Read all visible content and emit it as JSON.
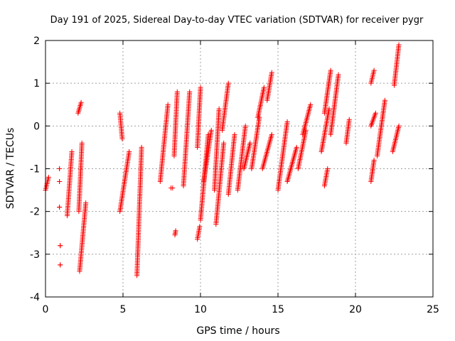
{
  "colors": {
    "marker": "#ff0000",
    "grid": "#a0a0a0",
    "axis": "#000000"
  },
  "chart_data": {
    "type": "scatter",
    "title": "Day 191 of 2025, Sidereal Day-to-day VTEC variation (SDTVAR) for receiver pygr",
    "xlabel": "GPS time / hours",
    "ylabel": "SDTVAR / TECUs",
    "xlim": [
      0,
      25
    ],
    "ylim": [
      -4,
      2
    ],
    "xticks": [
      0,
      5,
      10,
      15,
      20,
      25
    ],
    "yticks": [
      -4,
      -3,
      -2,
      -1,
      0,
      1,
      2
    ],
    "grid": true,
    "marker": "+",
    "series": [
      {
        "name": "SDTVAR",
        "segments": [
          {
            "x": [
              0.0,
              0.2
            ],
            "y": [
              -1.5,
              -1.2
            ]
          },
          {
            "x": [
              0.9,
              0.9
            ],
            "y": [
              -1.0,
              -1.0
            ]
          },
          {
            "x": [
              0.9,
              0.9
            ],
            "y": [
              -1.3,
              -1.3
            ]
          },
          {
            "x": [
              0.9,
              0.9
            ],
            "y": [
              -1.9,
              -1.9
            ]
          },
          {
            "x": [
              0.95,
              0.95
            ],
            "y": [
              -2.8,
              -2.8
            ]
          },
          {
            "x": [
              0.95,
              0.95
            ],
            "y": [
              -3.25,
              -3.25
            ]
          },
          {
            "x": [
              1.4,
              1.7
            ],
            "y": [
              -2.1,
              -0.6
            ]
          },
          {
            "x": [
              2.1,
              2.3
            ],
            "y": [
              0.3,
              0.55
            ]
          },
          {
            "x": [
              2.15,
              2.35
            ],
            "y": [
              -2.0,
              -0.4
            ]
          },
          {
            "x": [
              2.2,
              2.6
            ],
            "y": [
              -3.4,
              -1.8
            ]
          },
          {
            "x": [
              4.8,
              4.95
            ],
            "y": [
              0.3,
              -0.3
            ]
          },
          {
            "x": [
              4.8,
              5.4
            ],
            "y": [
              -2.0,
              -0.6
            ]
          },
          {
            "x": [
              5.9,
              6.2
            ],
            "y": [
              -3.5,
              -0.5
            ]
          },
          {
            "x": [
              7.4,
              7.9
            ],
            "y": [
              -1.3,
              0.5
            ]
          },
          {
            "x": [
              8.1,
              8.2
            ],
            "y": [
              -1.45,
              -1.45
            ]
          },
          {
            "x": [
              8.3,
              8.5
            ],
            "y": [
              -0.7,
              0.8
            ]
          },
          {
            "x": [
              8.35,
              8.4
            ],
            "y": [
              -2.55,
              -2.45
            ]
          },
          {
            "x": [
              8.9,
              9.3
            ],
            "y": [
              -1.4,
              0.8
            ]
          },
          {
            "x": [
              9.8,
              10.0
            ],
            "y": [
              -0.5,
              0.9
            ]
          },
          {
            "x": [
              9.8,
              9.95
            ],
            "y": [
              -2.65,
              -2.35
            ]
          },
          {
            "x": [
              10.0,
              10.5
            ],
            "y": [
              -2.2,
              -0.2
            ]
          },
          {
            "x": [
              10.2,
              10.7
            ],
            "y": [
              -1.3,
              -0.1
            ]
          },
          {
            "x": [
              10.9,
              11.2
            ],
            "y": [
              -1.5,
              0.4
            ]
          },
          {
            "x": [
              11.0,
              11.5
            ],
            "y": [
              -2.3,
              -0.4
            ]
          },
          {
            "x": [
              11.4,
              11.8
            ],
            "y": [
              -0.1,
              1.0
            ]
          },
          {
            "x": [
              11.8,
              12.2
            ],
            "y": [
              -1.6,
              -0.2
            ]
          },
          {
            "x": [
              12.4,
              12.9
            ],
            "y": [
              -1.5,
              0.0
            ]
          },
          {
            "x": [
              12.8,
              13.2
            ],
            "y": [
              -1.0,
              -0.4
            ]
          },
          {
            "x": [
              13.3,
              13.8
            ],
            "y": [
              -1.0,
              0.2
            ]
          },
          {
            "x": [
              13.7,
              14.1
            ],
            "y": [
              0.2,
              0.9
            ]
          },
          {
            "x": [
              14.0,
              14.6
            ],
            "y": [
              -1.0,
              -0.2
            ]
          },
          {
            "x": [
              14.3,
              14.6
            ],
            "y": [
              0.6,
              1.25
            ]
          },
          {
            "x": [
              15.0,
              15.6
            ],
            "y": [
              -1.5,
              0.1
            ]
          },
          {
            "x": [
              15.6,
              16.2
            ],
            "y": [
              -1.3,
              -0.5
            ]
          },
          {
            "x": [
              16.3,
              16.8
            ],
            "y": [
              -1.0,
              -0.1
            ]
          },
          {
            "x": [
              16.6,
              17.1
            ],
            "y": [
              -0.2,
              0.5
            ]
          },
          {
            "x": [
              17.8,
              18.3
            ],
            "y": [
              -0.6,
              0.4
            ]
          },
          {
            "x": [
              18.0,
              18.4
            ],
            "y": [
              0.3,
              1.3
            ]
          },
          {
            "x": [
              18.0,
              18.2
            ],
            "y": [
              -1.4,
              -1.0
            ]
          },
          {
            "x": [
              18.4,
              18.9
            ],
            "y": [
              -0.2,
              1.2
            ]
          },
          {
            "x": [
              19.4,
              19.6
            ],
            "y": [
              -0.4,
              0.15
            ]
          },
          {
            "x": [
              21.0,
              21.2
            ],
            "y": [
              -1.3,
              -0.8
            ]
          },
          {
            "x": [
              21.0,
              21.2
            ],
            "y": [
              1.0,
              1.3
            ]
          },
          {
            "x": [
              21.0,
              21.3
            ],
            "y": [
              0.0,
              0.3
            ]
          },
          {
            "x": [
              21.4,
              21.9
            ],
            "y": [
              -0.7,
              0.6
            ]
          },
          {
            "x": [
              22.4,
              22.8
            ],
            "y": [
              -0.6,
              0.0
            ]
          },
          {
            "x": [
              22.5,
              22.8
            ],
            "y": [
              0.95,
              1.9
            ]
          }
        ]
      }
    ]
  }
}
